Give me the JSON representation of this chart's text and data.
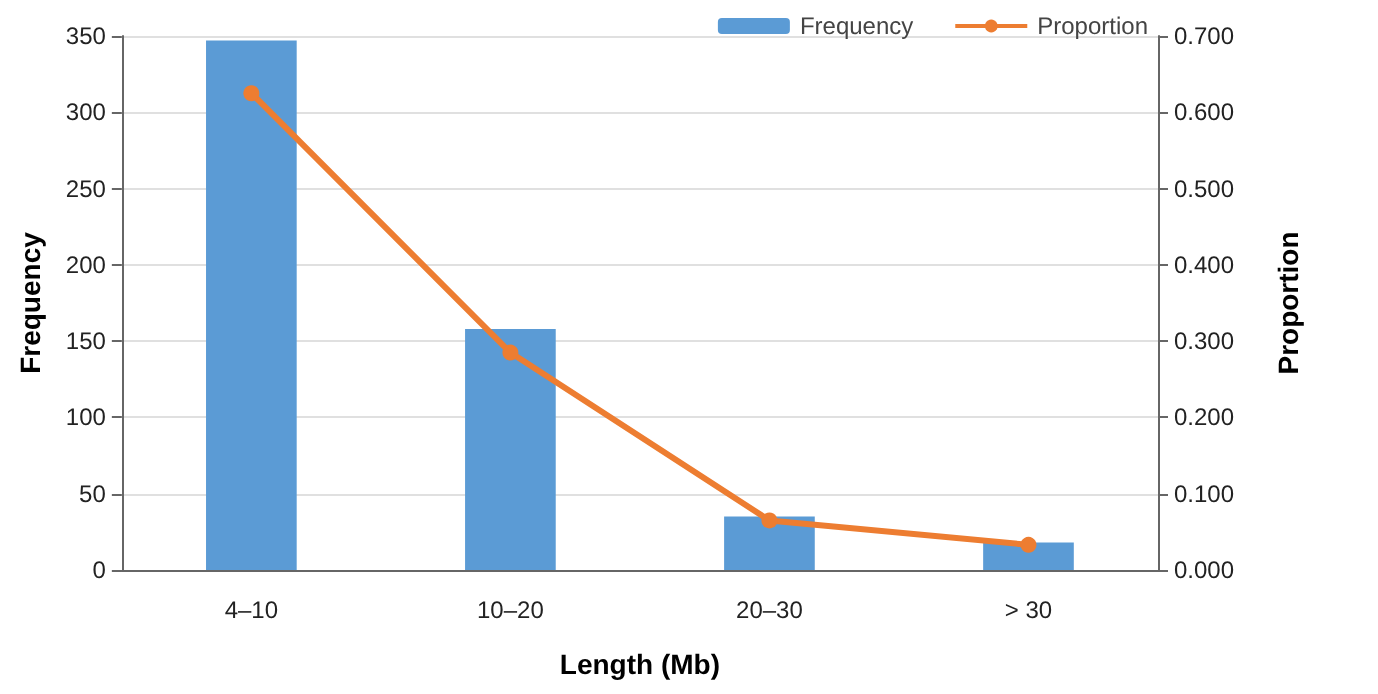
{
  "chart_data": {
    "type": "bar",
    "xlabel": "Length (Mb)",
    "ylabel": "Frequency",
    "y2label": "Proportion",
    "categories": [
      "4–10",
      "10–20",
      "20–30",
      "> 30"
    ],
    "series": [
      {
        "name": "Frequency",
        "color": "#5b9bd5",
        "values": [
          347,
          158,
          35,
          18
        ]
      },
      {
        "name": "Proportion",
        "type": "line",
        "axis": "y2",
        "color": "#ed7d31",
        "marker": "circle",
        "values": [
          0.625,
          0.285,
          0.065,
          0.033
        ]
      }
    ],
    "ylim": [
      0,
      350
    ],
    "yticks": [
      0,
      50,
      100,
      150,
      200,
      250,
      300,
      350
    ],
    "y2lim": [
      0,
      0.7
    ],
    "y2ticks": [
      {
        "value": 0,
        "label": "0.000"
      },
      {
        "value": 0.1,
        "label": "0.100"
      },
      {
        "value": 0.2,
        "label": "0.200"
      },
      {
        "value": 0.3,
        "label": "0.300"
      },
      {
        "value": 0.4,
        "label": "0.400"
      },
      {
        "value": 0.5,
        "label": "0.500"
      },
      {
        "value": 0.6,
        "label": "0.600"
      },
      {
        "value": 0.7,
        "label": "0.700"
      }
    ],
    "grid": "y",
    "legend": "top right"
  }
}
